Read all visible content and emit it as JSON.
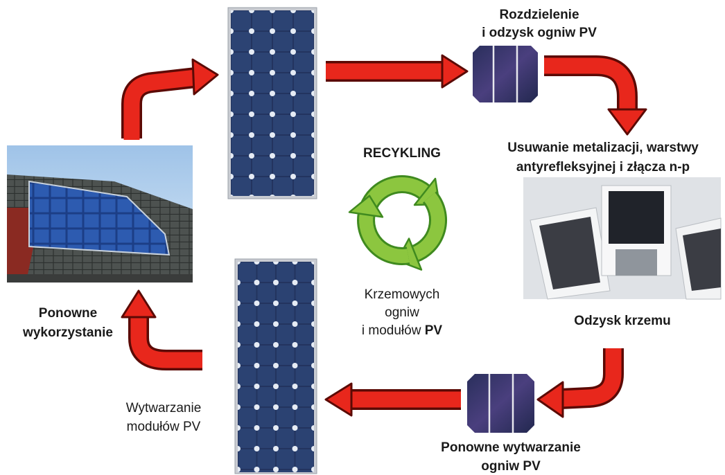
{
  "center": {
    "title": "RECYKLING",
    "subtitle": [
      "Krzemowych",
      "ogniw",
      "i modułów",
      "PV"
    ]
  },
  "steps": [
    {
      "label": [
        "Rozdzielenie",
        "i odzysk ogniw PV"
      ]
    },
    {
      "label": [
        "Usuwanie metalizacji, warstwy",
        "antyrefleksyjnej i złącza n-p"
      ]
    },
    {
      "label": [
        "Odzysk krzemu"
      ]
    },
    {
      "label": [
        "Ponowne wytwarzanie",
        "ogniw PV"
      ]
    },
    {
      "label": [
        "Wytwarzanie",
        "modułów PV"
      ]
    },
    {
      "label": [
        "Ponowne",
        "wykorzystanie"
      ]
    }
  ]
}
